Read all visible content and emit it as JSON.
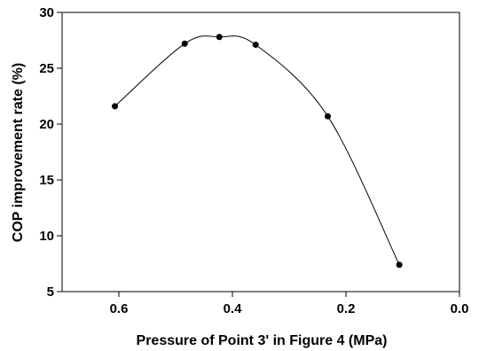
{
  "chart_data": {
    "type": "line",
    "title": "",
    "xlabel": "Pressure of Point 3' in Figure 4 (MPa)",
    "ylabel": "COP improvement rate (%)",
    "xlim": [
      0.7,
      0.0
    ],
    "ylim": [
      5,
      30
    ],
    "x_reversed": true,
    "grid": false,
    "legend": "none",
    "curve": "smooth",
    "x_ticks": [
      0.6,
      0.4,
      0.2,
      0.0
    ],
    "x_tick_labels": [
      "0.6",
      "0.4",
      "0.2",
      "0.0"
    ],
    "y_ticks": [
      5,
      10,
      15,
      20,
      25,
      30
    ],
    "y_tick_labels": [
      "5",
      "10",
      "15",
      "20",
      "25",
      "30"
    ],
    "series": [
      {
        "x": [
          0.607,
          0.484,
          0.423,
          0.359,
          0.232,
          0.106
        ],
        "y": [
          21.6,
          27.2,
          27.8,
          27.1,
          20.7,
          7.4
        ]
      }
    ],
    "colors": {
      "line": "#000000",
      "marker": "#000000",
      "axes": "#000000"
    }
  }
}
